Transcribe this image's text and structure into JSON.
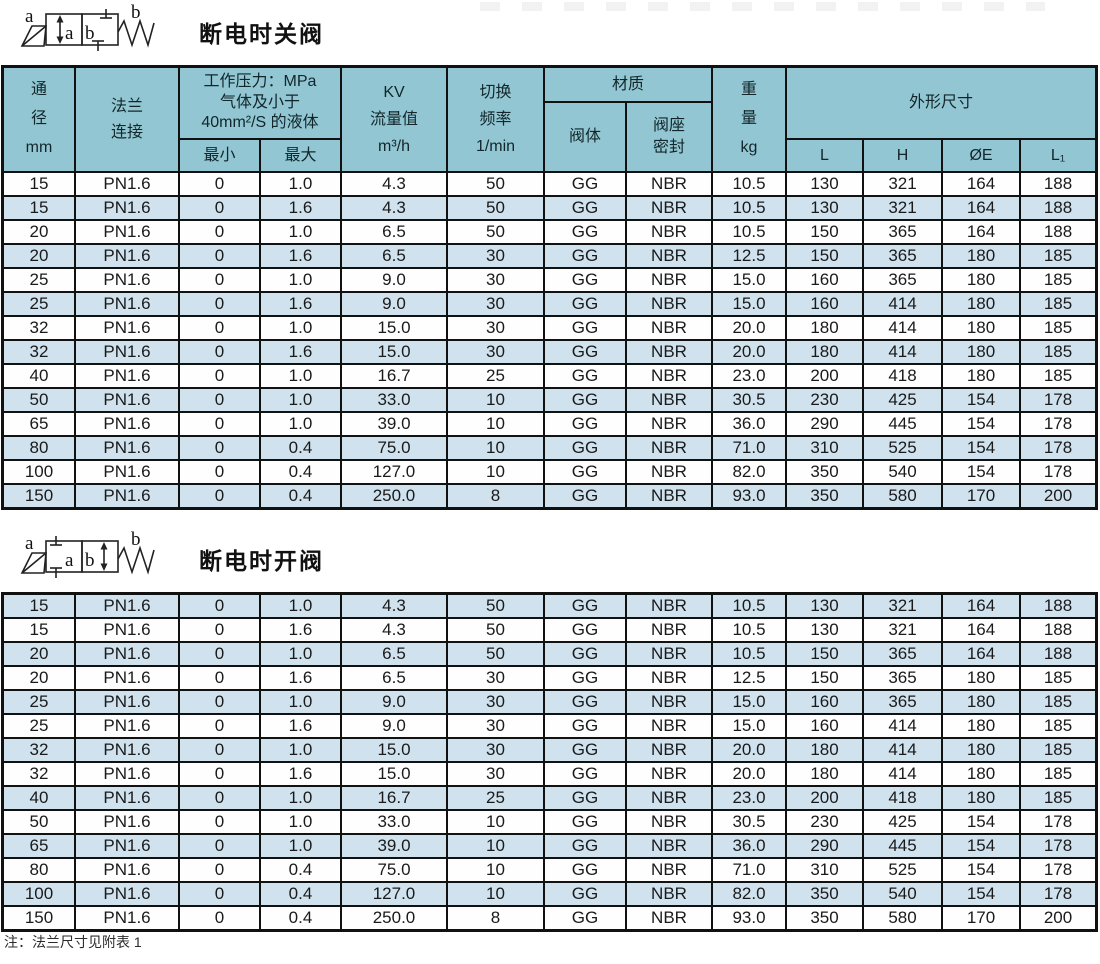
{
  "page": {
    "note": "注：法兰尺寸见附表 1"
  },
  "colors": {
    "header_bg": "#92c6d2",
    "row_alt_bg": "#cfe2ee",
    "row_bg": "#fefefe",
    "border": "#111111"
  },
  "sections": [
    {
      "title": "断电时关阀",
      "symbol": {
        "port_a": "a",
        "port_b": "b",
        "box_a": "a",
        "box_b": "b"
      }
    },
    {
      "title": "断电时开阀",
      "symbol": {
        "port_a": "a",
        "port_b": "b",
        "box_a": "a",
        "box_b": "b"
      }
    }
  ],
  "table": {
    "header": {
      "diameter": "通\n径\nmm",
      "flange": "法兰\n连接",
      "pressure": "工作压力：MPa\n气体及小于\n40mm²/S 的液体",
      "pressure_min": "最小",
      "pressure_max": "最大",
      "kv": "KV\n流量值\nm³/h",
      "frequency": "切换\n频率\n1/min",
      "material": "材质",
      "valve_body": "阀体",
      "seat_seal": "阀座\n密封",
      "weight": "重\n量\nkg",
      "dimensions": "外形尺寸",
      "dim_l": "L",
      "dim_h": "H",
      "dim_oe": "ØE",
      "dim_l1": "L₁"
    },
    "rows": [
      [
        "15",
        "PN1.6",
        "0",
        "1.0",
        "4.3",
        "50",
        "GG",
        "NBR",
        "10.5",
        "130",
        "321",
        "164",
        "188"
      ],
      [
        "15",
        "PN1.6",
        "0",
        "1.6",
        "4.3",
        "50",
        "GG",
        "NBR",
        "10.5",
        "130",
        "321",
        "164",
        "188"
      ],
      [
        "20",
        "PN1.6",
        "0",
        "1.0",
        "6.5",
        "50",
        "GG",
        "NBR",
        "10.5",
        "150",
        "365",
        "164",
        "188"
      ],
      [
        "20",
        "PN1.6",
        "0",
        "1.6",
        "6.5",
        "30",
        "GG",
        "NBR",
        "12.5",
        "150",
        "365",
        "180",
        "185"
      ],
      [
        "25",
        "PN1.6",
        "0",
        "1.0",
        "9.0",
        "30",
        "GG",
        "NBR",
        "15.0",
        "160",
        "365",
        "180",
        "185"
      ],
      [
        "25",
        "PN1.6",
        "0",
        "1.6",
        "9.0",
        "30",
        "GG",
        "NBR",
        "15.0",
        "160",
        "414",
        "180",
        "185"
      ],
      [
        "32",
        "PN1.6",
        "0",
        "1.0",
        "15.0",
        "30",
        "GG",
        "NBR",
        "20.0",
        "180",
        "414",
        "180",
        "185"
      ],
      [
        "32",
        "PN1.6",
        "0",
        "1.6",
        "15.0",
        "30",
        "GG",
        "NBR",
        "20.0",
        "180",
        "414",
        "180",
        "185"
      ],
      [
        "40",
        "PN1.6",
        "0",
        "1.0",
        "16.7",
        "25",
        "GG",
        "NBR",
        "23.0",
        "200",
        "418",
        "180",
        "185"
      ],
      [
        "50",
        "PN1.6",
        "0",
        "1.0",
        "33.0",
        "10",
        "GG",
        "NBR",
        "30.5",
        "230",
        "425",
        "154",
        "178"
      ],
      [
        "65",
        "PN1.6",
        "0",
        "1.0",
        "39.0",
        "10",
        "GG",
        "NBR",
        "36.0",
        "290",
        "445",
        "154",
        "178"
      ],
      [
        "80",
        "PN1.6",
        "0",
        "0.4",
        "75.0",
        "10",
        "GG",
        "NBR",
        "71.0",
        "310",
        "525",
        "154",
        "178"
      ],
      [
        "100",
        "PN1.6",
        "0",
        "0.4",
        "127.0",
        "10",
        "GG",
        "NBR",
        "82.0",
        "350",
        "540",
        "154",
        "178"
      ],
      [
        "150",
        "PN1.6",
        "0",
        "0.4",
        "250.0",
        "8",
        "GG",
        "NBR",
        "93.0",
        "350",
        "580",
        "170",
        "200"
      ]
    ]
  }
}
